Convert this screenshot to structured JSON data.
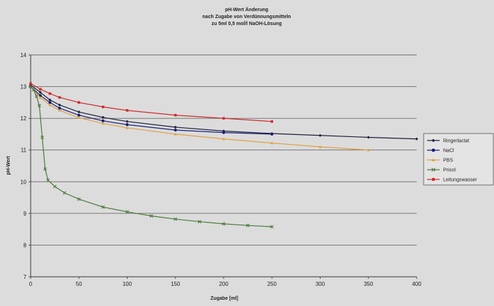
{
  "chart_data": {
    "type": "line",
    "title_lines": [
      "pH-Wert Änderung",
      "nach Zugabe von Verdünnungsmitteln",
      "zu 5ml 0,5 mol/l NaOH-Lösung"
    ],
    "xlabel": "Zugabe [ml]",
    "ylabel": "pH-Wert",
    "xlim": [
      0,
      400
    ],
    "ylim": [
      7,
      14
    ],
    "xticks": [
      0,
      50,
      100,
      150,
      200,
      250,
      300,
      350,
      400
    ],
    "yticks": [
      7,
      8,
      9,
      10,
      11,
      12,
      13,
      14
    ],
    "grid": true,
    "legend_position": "right",
    "series": [
      {
        "name": "Ringerlactat",
        "color": "#1c1c3c",
        "marker": "diamond",
        "x": [
          0,
          10,
          20,
          30,
          50,
          75,
          100,
          150,
          200,
          250,
          300,
          350,
          400
        ],
        "y": [
          13.05,
          12.82,
          12.58,
          12.42,
          12.2,
          12.03,
          11.9,
          11.72,
          11.6,
          11.52,
          11.46,
          11.4,
          11.35
        ]
      },
      {
        "name": "NaCl",
        "color": "#1a1f78",
        "marker": "circle",
        "x": [
          0,
          10,
          20,
          30,
          50,
          75,
          100,
          150,
          200,
          250
        ],
        "y": [
          13.0,
          12.72,
          12.5,
          12.32,
          12.1,
          11.92,
          11.8,
          11.63,
          11.55,
          11.5
        ]
      },
      {
        "name": "PBS",
        "color": "#e0a040",
        "marker": "triangle",
        "x": [
          0,
          10,
          20,
          30,
          50,
          75,
          100,
          150,
          200,
          250,
          300,
          350
        ],
        "y": [
          13.0,
          12.65,
          12.42,
          12.25,
          12.02,
          11.84,
          11.7,
          11.5,
          11.35,
          11.22,
          11.1,
          11.0
        ]
      },
      {
        "name": "Prionl",
        "color": "#4a7a3a",
        "marker": "x",
        "x": [
          0,
          3,
          6,
          9,
          12,
          15,
          18,
          25,
          35,
          50,
          75,
          100,
          125,
          150,
          175,
          200,
          225,
          250
        ],
        "y": [
          13.0,
          12.9,
          12.7,
          12.4,
          11.4,
          10.4,
          10.05,
          9.85,
          9.65,
          9.45,
          9.2,
          9.05,
          8.92,
          8.82,
          8.74,
          8.67,
          8.62,
          8.58
        ]
      },
      {
        "name": "Leitungswasser",
        "color": "#d02a2a",
        "marker": "square",
        "x": [
          0,
          10,
          20,
          30,
          50,
          75,
          100,
          150,
          200,
          250
        ],
        "y": [
          13.1,
          12.92,
          12.78,
          12.66,
          12.5,
          12.36,
          12.25,
          12.1,
          12.0,
          11.9
        ]
      }
    ]
  }
}
